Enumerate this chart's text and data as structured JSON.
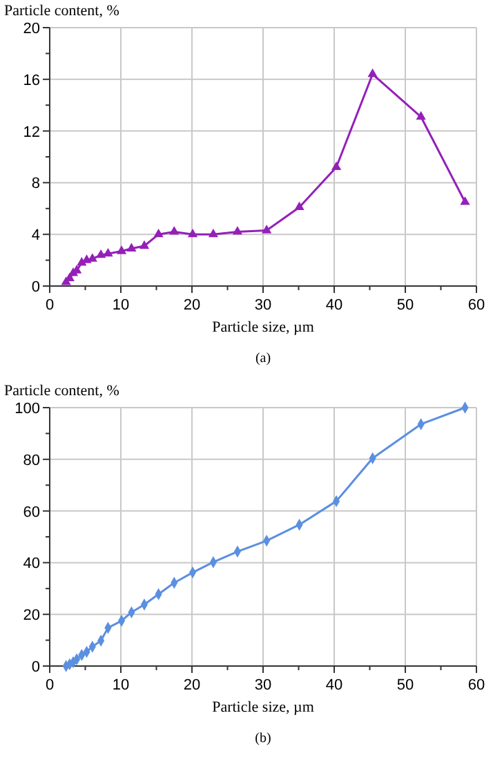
{
  "chart_data": [
    {
      "type": "line",
      "ylabel": "Particle content, %",
      "xlabel": "Particle size, µm",
      "annotations": [
        "(a)"
      ],
      "x": [
        2.3,
        2.8,
        3.3,
        3.8,
        4.5,
        5.2,
        6.0,
        7.2,
        8.2,
        10.1,
        11.5,
        13.3,
        15.3,
        17.5,
        20.1,
        23.0,
        26.4,
        30.5,
        35.1,
        40.3,
        45.4,
        52.2,
        58.4
      ],
      "series": [
        {
          "color": "#9420b8",
          "values": [
            0.3,
            0.6,
            1.0,
            1.2,
            1.8,
            2.0,
            2.1,
            2.4,
            2.5,
            2.7,
            2.9,
            3.1,
            4.0,
            4.2,
            4.0,
            4.0,
            4.2,
            4.3,
            6.1,
            9.2,
            16.4,
            13.1,
            6.5
          ]
        }
      ],
      "xlim": [
        0,
        60
      ],
      "xticks": [
        0,
        {
          "value": 5,
          "label": null
        },
        10,
        {
          "value": 15,
          "label": null
        },
        20,
        {
          "value": 25,
          "label": null
        },
        30,
        {
          "value": 35,
          "label": null
        },
        40,
        {
          "value": 45,
          "label": null
        },
        50,
        {
          "value": 55,
          "label": null
        },
        60
      ],
      "ylim": [
        0,
        20
      ],
      "yticks": [
        0,
        {
          "value": 2,
          "label": null
        },
        4,
        {
          "value": 6,
          "label": null
        },
        8,
        {
          "value": 10,
          "label": null
        },
        12,
        {
          "value": 14,
          "label": null
        },
        16,
        {
          "value": 18,
          "label": null
        },
        20
      ],
      "grid": true,
      "marker": "triangle",
      "line_style": "solid"
    },
    {
      "type": "line",
      "ylabel": "Particle content, %",
      "xlabel": "Particle size, µm",
      "annotations": [
        "(b)"
      ],
      "x": [
        2.3,
        2.8,
        3.3,
        3.8,
        4.5,
        5.2,
        6.0,
        7.2,
        8.2,
        10.1,
        11.5,
        13.3,
        15.3,
        17.5,
        20.1,
        23.0,
        26.4,
        30.5,
        35.1,
        40.3,
        45.4,
        52.2,
        58.4
      ],
      "series": [
        {
          "color": "#5b8fe0",
          "values": [
            0,
            0.7,
            1.5,
            2.6,
            4.3,
            5.5,
            7.5,
            9.8,
            14.8,
            17.5,
            20.8,
            23.8,
            27.8,
            32.2,
            36.2,
            40.2,
            44.3,
            48.5,
            54.7,
            63.8,
            80.4,
            93.6,
            100
          ]
        }
      ],
      "xlim": [
        0,
        60
      ],
      "xticks": [
        0,
        {
          "value": 5,
          "label": null
        },
        10,
        {
          "value": 15,
          "label": null
        },
        20,
        {
          "value": 25,
          "label": null
        },
        30,
        {
          "value": 35,
          "label": null
        },
        40,
        {
          "value": 45,
          "label": null
        },
        50,
        {
          "value": 55,
          "label": null
        },
        60
      ],
      "ylim": [
        0,
        100
      ],
      "yticks": [
        0,
        {
          "value": 10,
          "label": null
        },
        20,
        {
          "value": 30,
          "label": null
        },
        40,
        {
          "value": 50,
          "label": null
        },
        60,
        {
          "value": 70,
          "label": null
        },
        80,
        {
          "value": 90,
          "label": null
        },
        100
      ],
      "grid": true,
      "marker": "diamond",
      "line_style": "solid"
    }
  ]
}
